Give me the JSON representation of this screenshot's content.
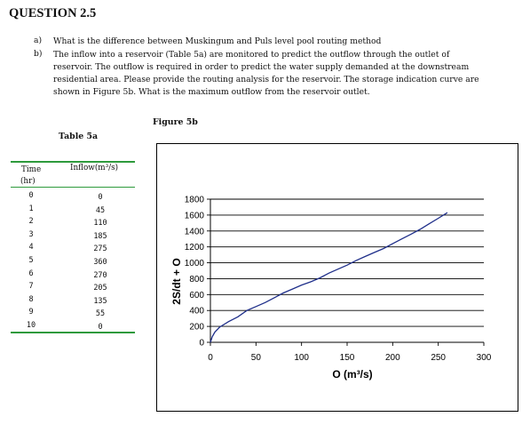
{
  "question": {
    "title": "QUESTION 2.5",
    "parts": [
      {
        "label": "a)",
        "lines": [
          "What is the difference between Muskingum and  Puls  level pool routing method"
        ]
      },
      {
        "label": "b)",
        "lines": [
          "The inflow into a reservoir (Table 5a)  are monitored to predict the outflow through the outlet of",
          "reservoir. The outflow  is required in order to predict the water supply demanded at the downstream",
          "residential area. Please provide the routing analysis for the reservoir. The storage indication curve are",
          "shown in Figure 5b.  What is the maximum outflow from the reservoir outlet."
        ]
      }
    ]
  },
  "table": {
    "title": "Table 5a",
    "col1_header_line1": "Time",
    "col1_header_line2": "(hr)",
    "col2_header": "Inflow(m³/s)",
    "rows": [
      {
        "time": "0",
        "inflow": "0"
      },
      {
        "time": "1",
        "inflow": "45"
      },
      {
        "time": "2",
        "inflow": "110"
      },
      {
        "time": "3",
        "inflow": "185"
      },
      {
        "time": "4",
        "inflow": "275"
      },
      {
        "time": "5",
        "inflow": "360"
      },
      {
        "time": "6",
        "inflow": "270"
      },
      {
        "time": "7",
        "inflow": "205"
      },
      {
        "time": "8",
        "inflow": "135"
      },
      {
        "time": "9",
        "inflow": "55"
      },
      {
        "time": "10",
        "inflow": "0"
      }
    ],
    "rule_color": "#2e9a3c"
  },
  "figure": {
    "title": "Figure 5b"
  },
  "chart_data": {
    "type": "line",
    "xlabel": "O (m³/s)",
    "ylabel": "2S/dt + O",
    "xlim": [
      0,
      300
    ],
    "ylim": [
      0,
      1800
    ],
    "xticks": [
      "0",
      "50",
      "100",
      "150",
      "200",
      "250",
      "300"
    ],
    "yticks": [
      "0",
      "200",
      "400",
      "600",
      "800",
      "1000",
      "1200",
      "1400",
      "1600",
      "1800"
    ],
    "grid": "horizontal",
    "series": [
      {
        "color": "#1f2f8a",
        "x": [
          0,
          2,
          5,
          10,
          20,
          30,
          40,
          50,
          60,
          70,
          80,
          90,
          100,
          110,
          120,
          130,
          140,
          150,
          160,
          170,
          180,
          190,
          200,
          210,
          220,
          230,
          240,
          250,
          260
        ],
        "y": [
          0,
          70,
          130,
          190,
          260,
          320,
          400,
          450,
          500,
          560,
          620,
          670,
          720,
          760,
          810,
          870,
          920,
          970,
          1030,
          1080,
          1130,
          1180,
          1240,
          1300,
          1360,
          1420,
          1490,
          1560,
          1630
        ]
      }
    ]
  }
}
